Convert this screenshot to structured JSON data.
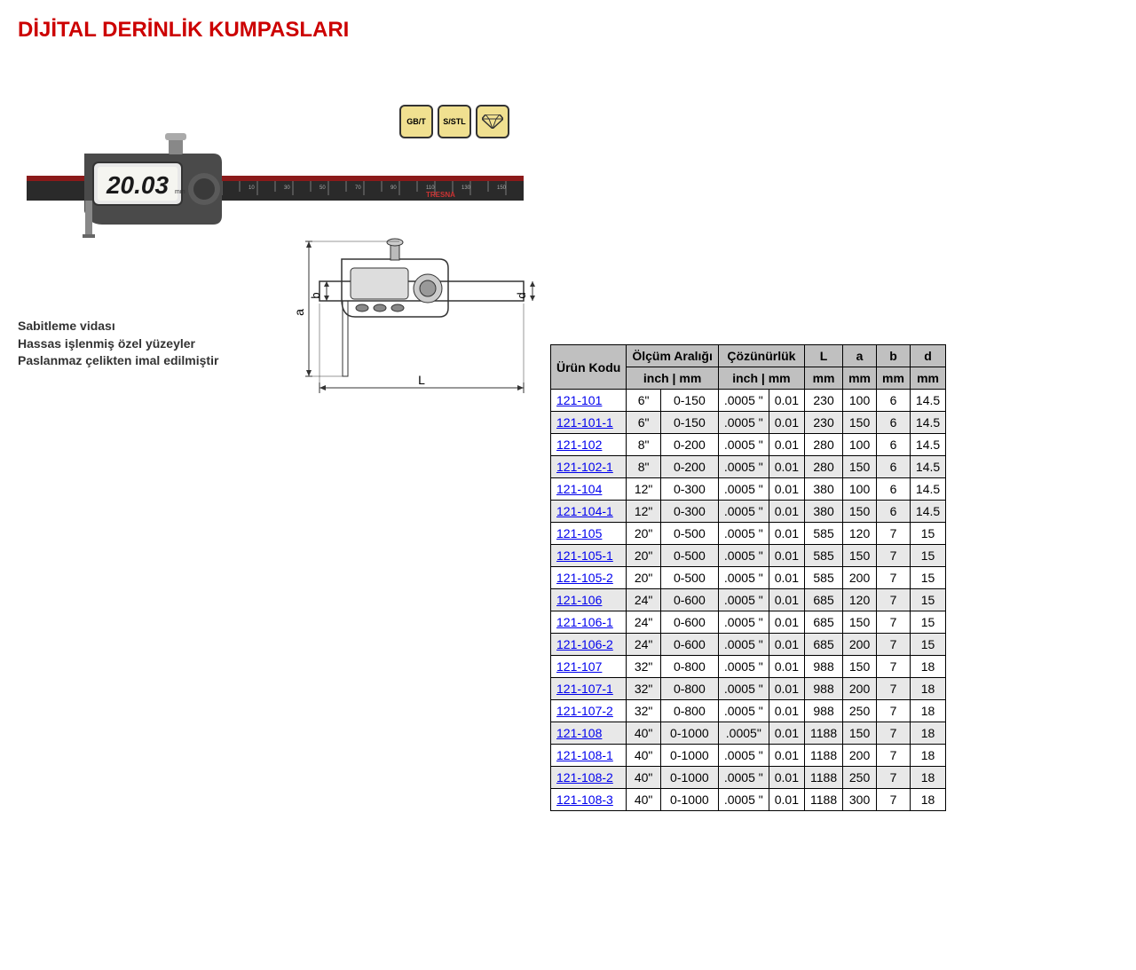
{
  "title": "DİJİTAL DERİNLİK KUMPASLARI",
  "display_value": "20.03",
  "badges": [
    "GB/T",
    "S/STL",
    "◇"
  ],
  "features": [
    "Sabitleme vidası",
    "Hassas işlenmiş özel yüzeyler",
    "Paslanmaz çelikten imal edilmiştir"
  ],
  "diagram_labels": {
    "a": "a",
    "b": "b",
    "d": "d",
    "L": "L"
  },
  "table": {
    "headers": {
      "product_code": "Ürün Kodu",
      "range": "Ölçüm Aralığı",
      "resolution": "Çözünürlük",
      "L": "L",
      "a": "a",
      "b": "b",
      "d": "d"
    },
    "units": {
      "range_inch": "inch",
      "range_mm": "mm",
      "res_inch": "inch",
      "res_mm": "mm",
      "L": "mm",
      "a": "mm",
      "b": "mm",
      "d": "mm",
      "sep": " | "
    },
    "col_style": {
      "header_bg": "#c0c0c0",
      "alt_row_bg": "#e8e8e8",
      "border": "#000000",
      "link_color": "#0000ee"
    },
    "rows": [
      {
        "code": "121-101",
        "inch": "6\"",
        "mm": "0-150",
        "res_in": ".0005 \"",
        "res_mm": "0.01",
        "L": "230",
        "a": "100",
        "b": "6",
        "d": "14.5",
        "alt": false
      },
      {
        "code": "121-101-1",
        "inch": "6\"",
        "mm": "0-150",
        "res_in": ".0005 \"",
        "res_mm": "0.01",
        "L": "230",
        "a": "150",
        "b": "6",
        "d": "14.5",
        "alt": true
      },
      {
        "code": "121-102",
        "inch": "8\"",
        "mm": "0-200",
        "res_in": ".0005 \"",
        "res_mm": "0.01",
        "L": "280",
        "a": "100",
        "b": "6",
        "d": "14.5",
        "alt": false
      },
      {
        "code": "121-102-1",
        "inch": "8\"",
        "mm": "0-200",
        "res_in": ".0005 \"",
        "res_mm": "0.01",
        "L": "280",
        "a": "150",
        "b": "6",
        "d": "14.5",
        "alt": true
      },
      {
        "code": "121-104",
        "inch": "12\"",
        "mm": "0-300",
        "res_in": ".0005 \"",
        "res_mm": "0.01",
        "L": "380",
        "a": "100",
        "b": "6",
        "d": "14.5",
        "alt": false
      },
      {
        "code": "121-104-1",
        "inch": "12\"",
        "mm": "0-300",
        "res_in": ".0005 \"",
        "res_mm": "0.01",
        "L": "380",
        "a": "150",
        "b": "6",
        "d": "14.5",
        "alt": true
      },
      {
        "code": "121-105",
        "inch": "20\"",
        "mm": "0-500",
        "res_in": ".0005 \"",
        "res_mm": "0.01",
        "L": "585",
        "a": "120",
        "b": "7",
        "d": "15",
        "alt": false
      },
      {
        "code": "121-105-1",
        "inch": "20\"",
        "mm": "0-500",
        "res_in": ".0005 \"",
        "res_mm": "0.01",
        "L": "585",
        "a": "150",
        "b": "7",
        "d": "15",
        "alt": true
      },
      {
        "code": "121-105-2",
        "inch": "20\"",
        "mm": "0-500",
        "res_in": ".0005 \"",
        "res_mm": "0.01",
        "L": "585",
        "a": "200",
        "b": "7",
        "d": "15",
        "alt": false
      },
      {
        "code": "121-106",
        "inch": "24\"",
        "mm": "0-600",
        "res_in": ".0005 \"",
        "res_mm": "0.01",
        "L": "685",
        "a": "120",
        "b": "7",
        "d": "15",
        "alt": true
      },
      {
        "code": "121-106-1",
        "inch": "24\"",
        "mm": "0-600",
        "res_in": ".0005 \"",
        "res_mm": "0.01",
        "L": "685",
        "a": "150",
        "b": "7",
        "d": "15",
        "alt": false
      },
      {
        "code": "121-106-2",
        "inch": "24\"",
        "mm": "0-600",
        "res_in": ".0005 \"",
        "res_mm": "0.01",
        "L": "685",
        "a": "200",
        "b": "7",
        "d": "15",
        "alt": true
      },
      {
        "code": "121-107",
        "inch": "32\"",
        "mm": "0-800",
        "res_in": ".0005 \"",
        "res_mm": "0.01",
        "L": "988",
        "a": "150",
        "b": "7",
        "d": "18",
        "alt": false
      },
      {
        "code": "121-107-1",
        "inch": "32\"",
        "mm": "0-800",
        "res_in": ".0005 \"",
        "res_mm": "0.01",
        "L": "988",
        "a": "200",
        "b": "7",
        "d": "18",
        "alt": true
      },
      {
        "code": "121-107-2",
        "inch": "32\"",
        "mm": "0-800",
        "res_in": ".0005 \"",
        "res_mm": "0.01",
        "L": "988",
        "a": "250",
        "b": "7",
        "d": "18",
        "alt": false
      },
      {
        "code": "121-108",
        "inch": "40\"",
        "mm": "0-1000",
        "res_in": ".0005\"",
        "res_mm": "0.01",
        "L": "1188",
        "a": "150",
        "b": "7",
        "d": "18",
        "alt": true
      },
      {
        "code": "121-108-1",
        "inch": "40\"",
        "mm": "0-1000",
        "res_in": ".0005 \"",
        "res_mm": "0.01",
        "L": "1188",
        "a": "200",
        "b": "7",
        "d": "18",
        "alt": false
      },
      {
        "code": "121-108-2",
        "inch": "40\"",
        "mm": "0-1000",
        "res_in": ".0005 \"",
        "res_mm": "0.01",
        "L": "1188",
        "a": "250",
        "b": "7",
        "d": "18",
        "alt": true
      },
      {
        "code": "121-108-3",
        "inch": "40\"",
        "mm": "0-1000",
        "res_in": ".0005 \"",
        "res_mm": "0.01",
        "L": "1188",
        "a": "300",
        "b": "7",
        "d": "18",
        "alt": false
      }
    ]
  }
}
